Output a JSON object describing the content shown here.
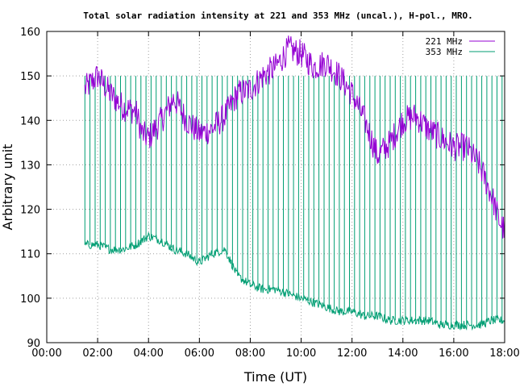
{
  "chart_data": {
    "type": "line",
    "title": "Total solar radiation intensity at 221 and 353 MHz (uncal.), H-pol., MRO.",
    "xlabel": "Time (UT)",
    "ylabel": "Arbitrary unit",
    "xlim": [
      "00:00",
      "18:00"
    ],
    "ylim": [
      90,
      160
    ],
    "x_ticks": [
      "00:00",
      "02:00",
      "04:00",
      "06:00",
      "08:00",
      "10:00",
      "12:00",
      "14:00",
      "16:00",
      "18:00"
    ],
    "y_ticks": [
      90,
      100,
      110,
      120,
      130,
      140,
      150,
      160
    ],
    "grid": true,
    "legend_position": "top-right",
    "series": [
      {
        "name": "221 MHz",
        "color": "#9400d3",
        "x": [
          "01:30",
          "02:00",
          "02:30",
          "03:00",
          "03:30",
          "03:45",
          "04:00",
          "04:30",
          "05:00",
          "05:30",
          "06:00",
          "06:30",
          "07:00",
          "07:30",
          "08:00",
          "08:30",
          "09:00",
          "09:30",
          "10:00",
          "10:30",
          "11:00",
          "11:30",
          "12:00",
          "12:30",
          "13:00",
          "13:30",
          "14:00",
          "14:30",
          "15:00",
          "15:30",
          "16:00",
          "16:30",
          "17:00",
          "17:30",
          "17:45",
          "18:00"
        ],
        "values": [
          147,
          150,
          146,
          143,
          142,
          137,
          136,
          140,
          145,
          140,
          137,
          138,
          141,
          146,
          147,
          150,
          152,
          156,
          155,
          152,
          153,
          150,
          146,
          140,
          132,
          135,
          140,
          141,
          138,
          136,
          134,
          134,
          130,
          123,
          118,
          115
        ]
      },
      {
        "name": "353 MHz",
        "color": "#009e73",
        "x": [
          "01:30",
          "02:00",
          "02:30",
          "03:00",
          "03:30",
          "04:00",
          "04:30",
          "05:00",
          "05:30",
          "06:00",
          "06:30",
          "07:00",
          "07:30",
          "08:00",
          "08:30",
          "09:00",
          "09:30",
          "10:00",
          "10:30",
          "11:00",
          "11:30",
          "12:00",
          "12:30",
          "13:00",
          "13:30",
          "14:00",
          "14:30",
          "15:00",
          "15:30",
          "16:00",
          "16:30",
          "17:00",
          "17:30",
          "18:00"
        ],
        "values": [
          112,
          112,
          111,
          111,
          112,
          114,
          113,
          111,
          110,
          108,
          110,
          111,
          105,
          103,
          102,
          102,
          101,
          100,
          99,
          98,
          97,
          97,
          96,
          96,
          95,
          95,
          95,
          95,
          94,
          94,
          94,
          94,
          95,
          95
        ]
      }
    ],
    "spikes": {
      "series": "353 MHz",
      "start": "01:30",
      "end": "17:55",
      "interval_minutes": 12,
      "peak_value": 150
    }
  }
}
